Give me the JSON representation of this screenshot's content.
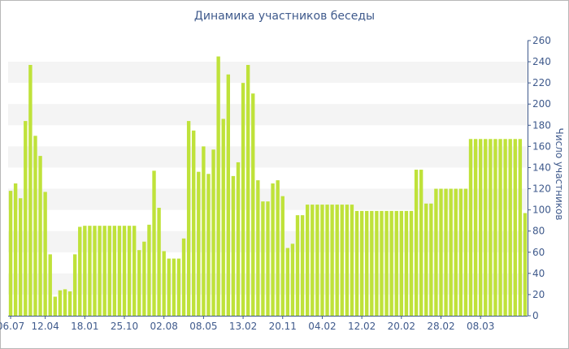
{
  "chart_data": {
    "type": "bar",
    "title": "Динамика участников беседы",
    "xlabel": "",
    "ylabel": "Число участников",
    "ylim": [
      0,
      260
    ],
    "yticks": [
      0,
      20,
      40,
      60,
      80,
      100,
      120,
      140,
      160,
      180,
      200,
      220,
      240,
      260
    ],
    "grid": "alternating horizontal bands",
    "bar_color": "#bfe23a",
    "band_color": "#f4f4f4",
    "text_color": "#3f5a8c",
    "x_tick_labels": [
      {
        "label": "06.07",
        "index": 0
      },
      {
        "label": "12.04",
        "index": 7
      },
      {
        "label": "18.01",
        "index": 15
      },
      {
        "label": "25.10",
        "index": 23
      },
      {
        "label": "02.08",
        "index": 31
      },
      {
        "label": "08.05",
        "index": 39
      },
      {
        "label": "13.02",
        "index": 47
      },
      {
        "label": "20.11",
        "index": 55
      },
      {
        "label": "04.02",
        "index": 63
      },
      {
        "label": "12.02",
        "index": 71
      },
      {
        "label": "20.02",
        "index": 79
      },
      {
        "label": "28.02",
        "index": 87
      },
      {
        "label": "08.03",
        "index": 95
      }
    ],
    "values": [
      118,
      125,
      111,
      184,
      237,
      170,
      151,
      117,
      58,
      18,
      24,
      25,
      23,
      58,
      84,
      85,
      85,
      85,
      85,
      85,
      85,
      85,
      85,
      85,
      85,
      85,
      62,
      70,
      86,
      137,
      102,
      61,
      54,
      54,
      54,
      73,
      184,
      175,
      136,
      160,
      134,
      157,
      245,
      186,
      228,
      132,
      145,
      220,
      237,
      210,
      128,
      108,
      108,
      125,
      128,
      113,
      64,
      68,
      95,
      95,
      105,
      105,
      105,
      105,
      105,
      105,
      105,
      105,
      105,
      105,
      99,
      99,
      99,
      99,
      99,
      99,
      99,
      99,
      99,
      99,
      99,
      99,
      138,
      138,
      106,
      106,
      120,
      120,
      120,
      120,
      120,
      120,
      120,
      167,
      167,
      167,
      167,
      167,
      167,
      167,
      167,
      167,
      167,
      167,
      97
    ]
  }
}
